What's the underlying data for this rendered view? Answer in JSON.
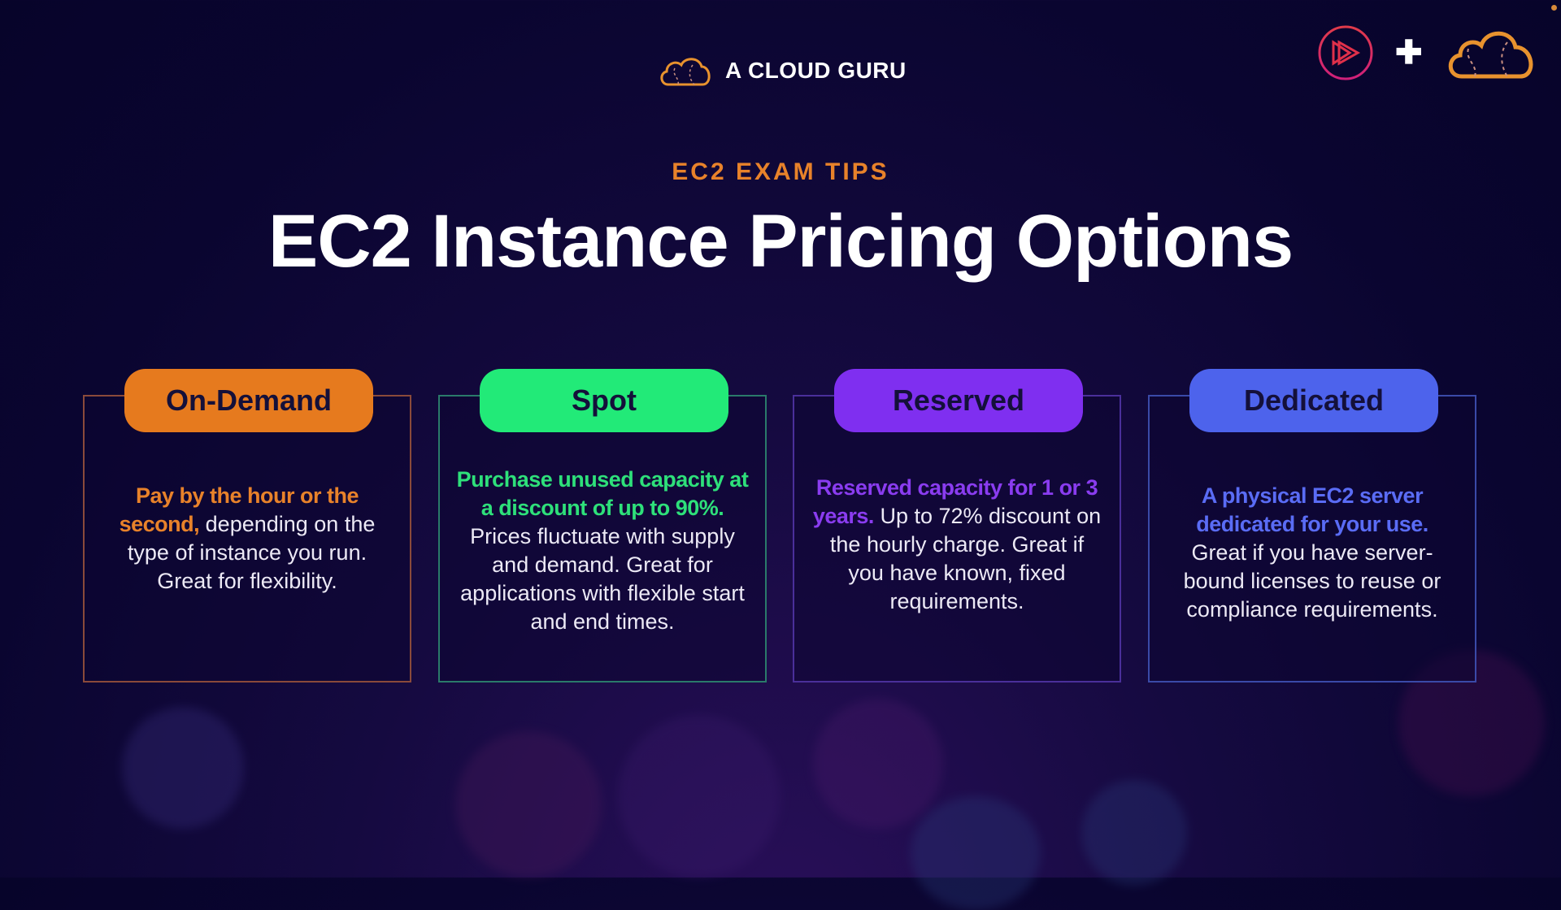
{
  "brand": {
    "name": "A CLOUD GURU",
    "logo_icon": "cloud-icon",
    "corner_icons": [
      "pluralsight-play-icon",
      "plus-icon",
      "cloud-icon"
    ]
  },
  "header": {
    "eyebrow": "EC2 EXAM TIPS",
    "title": "EC2 Instance Pricing Options"
  },
  "colors": {
    "background": "#0a0530",
    "orange": "#e67a1e",
    "green": "#22ea78",
    "purple": "#7f2ff0",
    "blue": "#4d63ec"
  },
  "cards": [
    {
      "label": "On-Demand",
      "highlight": "Pay by the hour or the second,",
      "text": " depending on the type of instance you run. Great for flexibility.",
      "color": "#e67a1e",
      "border": "#8a4a3a",
      "hl_color": "#e8822a"
    },
    {
      "label": "Spot",
      "highlight": "Purchase unused capacity at a discount of up to 90%.",
      "text": " Prices fluctuate with supply and demand. Great for applications with flexible start and end times.",
      "color": "#22ea78",
      "border": "#2a7a6a",
      "hl_color": "#2ee07a"
    },
    {
      "label": "Reserved",
      "highlight": "Reserved capacity for 1 or 3 years.",
      "text": " Up to 72% discount on the hourly charge. Great if you have known, fixed requirements.",
      "color": "#7f2ff0",
      "border": "#4a2f9a",
      "hl_color": "#8a3cf0"
    },
    {
      "label": "Dedicated",
      "highlight": "A physical EC2 server dedicated for your use.",
      "text": " Great if you have server-bound licenses to reuse or compliance requirements.",
      "color": "#4d63ec",
      "border": "#3a4aa8",
      "hl_color": "#5a6cf5"
    }
  ]
}
